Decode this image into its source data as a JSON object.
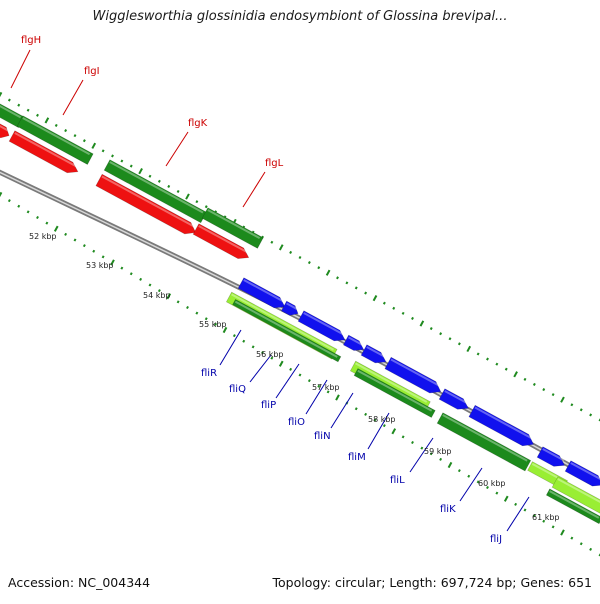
{
  "title": "Wigglesworthia glossinidia endosymbiont of Glossina brevipal...",
  "footer": {
    "accession": "Accession: NC_004344",
    "topology": "Topology: circular; Length: 697,724 bp; Genes: 651"
  },
  "colors": {
    "forward_cds": "#1c8a1c",
    "forward_highlight": "#99ee33",
    "reverse_cds_red": "#ee1111",
    "reverse_cds_blue": "#1111ee",
    "backbone": "#888888",
    "tick_dots": "#1f8a1f",
    "gene_label_red": "#cc0000",
    "gene_label_blue": "#0000aa"
  },
  "gene_labels_top": [
    "flgH",
    "flgI",
    "flgK",
    "flgL"
  ],
  "gene_labels_bottom": [
    "fliR",
    "fliQ",
    "fliP",
    "fliO",
    "fliN",
    "fliM",
    "fliL",
    "fliK",
    "fliJ"
  ],
  "kbp_labels": [
    "52 kbp",
    "53 kbp",
    "54 kbp",
    "55 kbp",
    "56 kbp",
    "57 kbp",
    "58 kbp",
    "59 kbp",
    "60 kbp",
    "61 kbp"
  ]
}
